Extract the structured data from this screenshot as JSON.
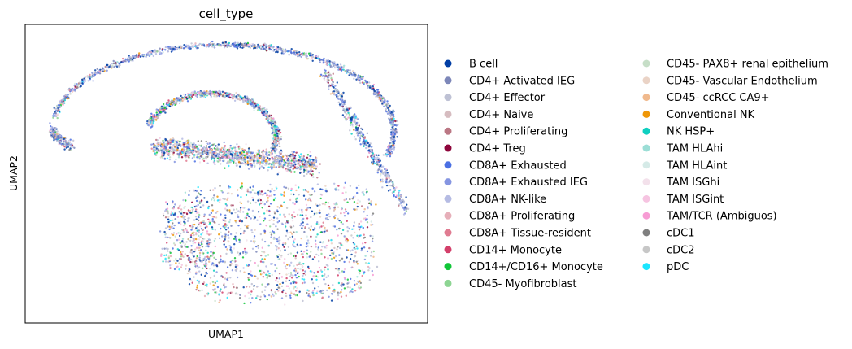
{
  "chart_data": {
    "type": "scatter",
    "title": "cell_type",
    "xlabel": "UMAP1",
    "ylabel": "UMAP2",
    "xticks": "none",
    "yticks": "none",
    "grid": false,
    "legend_placement": "right",
    "legend_columns": 2,
    "series": [
      {
        "name": "B cell",
        "color": "#023fa5"
      },
      {
        "name": "CD4+ Activated IEG",
        "color": "#7d87b9"
      },
      {
        "name": "CD4+ Effector",
        "color": "#bec1d4"
      },
      {
        "name": "CD4+ Naive",
        "color": "#d6bcc0"
      },
      {
        "name": "CD4+ Proliferating",
        "color": "#bb7784"
      },
      {
        "name": "CD4+ Treg",
        "color": "#8e063b"
      },
      {
        "name": "CD8A+ Exhausted",
        "color": "#4a6fe3"
      },
      {
        "name": "CD8A+ Exhausted IEG",
        "color": "#8595e1"
      },
      {
        "name": "CD8A+ NK-like",
        "color": "#b5bbe3"
      },
      {
        "name": "CD8A+ Proliferating",
        "color": "#e6afb9"
      },
      {
        "name": "CD8A+ Tissue-resident",
        "color": "#e07b91"
      },
      {
        "name": "CD14+ Monocyte",
        "color": "#d33f6a"
      },
      {
        "name": "CD14+/CD16+ Monocyte",
        "color": "#11c638"
      },
      {
        "name": "CD45- Myofibroblast",
        "color": "#8dd593"
      },
      {
        "name": "CD45- PAX8+ renal epithelium",
        "color": "#c6dec7"
      },
      {
        "name": "CD45- Vascular Endothelium",
        "color": "#ead3c6"
      },
      {
        "name": "CD45- ccRCC CA9+",
        "color": "#f0b98d"
      },
      {
        "name": "Conventional NK",
        "color": "#ef9708"
      },
      {
        "name": "NK HSP+",
        "color": "#0fcfc0"
      },
      {
        "name": "TAM HLAhi",
        "color": "#9cded6"
      },
      {
        "name": "TAM HLAint",
        "color": "#d5eae7"
      },
      {
        "name": "TAM ISGhi",
        "color": "#f3e1eb"
      },
      {
        "name": "TAM ISGint",
        "color": "#f6c4e1"
      },
      {
        "name": "TAM/TCR (Ambiguos)",
        "color": "#f79cd4"
      },
      {
        "name": "cDC1",
        "color": "#7f7f7f"
      },
      {
        "name": "cDC2",
        "color": "#c7c7c7"
      },
      {
        "name": "pDC",
        "color": "#1ce6ff"
      }
    ]
  }
}
